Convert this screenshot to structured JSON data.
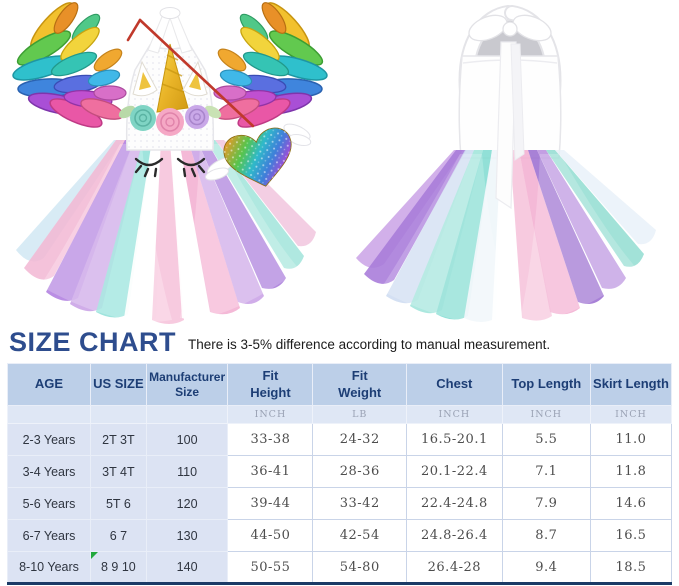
{
  "title": "SIZE CHART",
  "subtitle": "There is 3-5% difference according to manual measurement.",
  "chart_data": {
    "type": "table",
    "title": "SIZE CHART",
    "note": "There is 3-5% difference according to manual measurement.",
    "columns": [
      "AGE",
      "US SIZE",
      "Manufacturer Size",
      "Fit Height",
      "Fit Weight",
      "Chest",
      "Top Length",
      "Skirt Length"
    ],
    "units": [
      "",
      "",
      "",
      "INCH",
      "LB",
      "INCH",
      "INCH",
      "INCH"
    ],
    "rows": [
      [
        "2-3 Years",
        "2T 3T",
        "100",
        "33-38",
        "24-32",
        "16.5-20.1",
        "5.5",
        "11.0"
      ],
      [
        "3-4 Years",
        "3T 4T",
        "110",
        "36-41",
        "28-36",
        "20.1-22.4",
        "7.1",
        "11.8"
      ],
      [
        "5-6 Years",
        "5T 6",
        "120",
        "39-44",
        "33-42",
        "22.4-24.8",
        "7.9",
        "14.6"
      ],
      [
        "6-7 Years",
        "6 7",
        "130",
        "44-50",
        "42-54",
        "24.8-26.4",
        "8.7",
        "16.5"
      ],
      [
        "8-10 Years",
        "8 9 10",
        "140",
        "50-55",
        "54-80",
        "26.4-28",
        "9.4",
        "18.5"
      ]
    ],
    "corner_marker": {
      "row_index": 4,
      "col_index": 1
    }
  },
  "colors": {
    "title_text": "#2e4d8e",
    "header_bg": "#bccfe8",
    "header_text": "#1d3e75",
    "unit_row_bg": "#dfe7f5",
    "unit_text": "#9aa2b4",
    "label_col_bg": "#dce3f3",
    "label_text": "#2f3540",
    "num_text": "#4d4d4d",
    "table_border": "#c9d4e8",
    "table_bottom": "#1b3a66",
    "marker_green": "#22a83c"
  }
}
